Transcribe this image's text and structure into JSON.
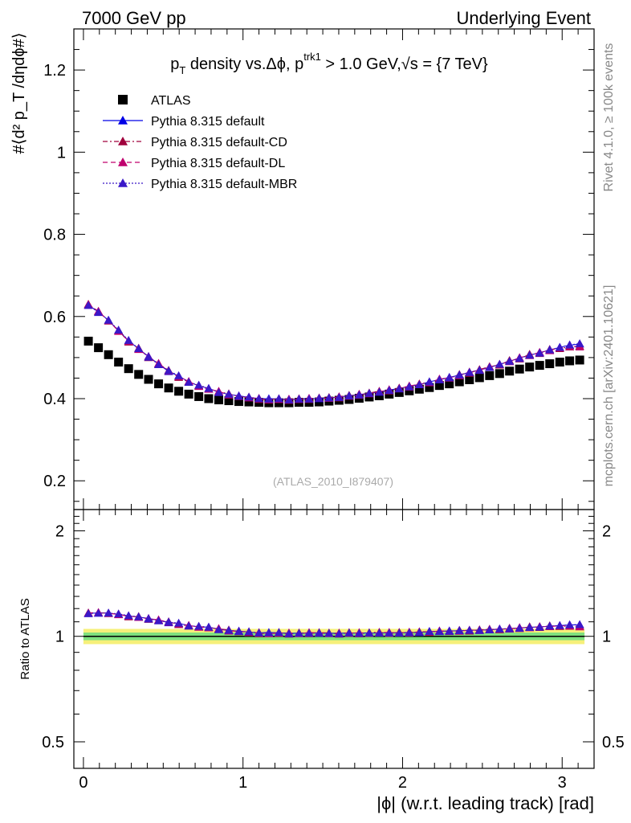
{
  "header": {
    "left_title": "7000 GeV pp",
    "right_title": "Underlying Event"
  },
  "side_text": {
    "rivet": "Rivet 4.1.0, ≥ 100k events",
    "mcplots": "mcplots.cern.ch [arXiv:2401.10621]"
  },
  "plot_title": {
    "p": "p",
    "t_sub": "T",
    "text1": " density vs.",
    "delta": "Δϕ, p",
    "trk_sup": "trk1",
    "text2": " > 1.0 GeV,",
    "sqrt_s": "√s",
    "text3": " = {7 TeV}"
  },
  "watermark": "(ATLAS_2010_I879407)",
  "y_label_main": "#⟨d² p_T /dηdϕ#⟩",
  "y_label_ratio": "Ratio to ATLAS",
  "x_label": "|ϕ| (w.r.t. leading track) [rad]",
  "legend": [
    {
      "label": "ATLAS",
      "color": "#000000",
      "marker": "square",
      "line": "none"
    },
    {
      "label": "Pythia 8.315 default",
      "color": "#0000e6",
      "marker": "triangle",
      "line": "solid"
    },
    {
      "label": "Pythia 8.315 default-CD",
      "color": "#a0003c",
      "marker": "triangle",
      "line": "dashdot"
    },
    {
      "label": "Pythia 8.315 default-DL",
      "color": "#c0006e",
      "marker": "triangle",
      "line": "dashed"
    },
    {
      "label": "Pythia 8.315 default-MBR",
      "color": "#3a18c8",
      "marker": "triangle",
      "line": "dotted"
    }
  ],
  "chart_data": [
    {
      "type": "scatter",
      "panel": "main",
      "xlim": [
        -0.06,
        3.2
      ],
      "ylim": [
        0.13,
        1.3
      ],
      "yticks": [
        0.2,
        0.4,
        0.6,
        0.8,
        1.0,
        1.2
      ],
      "ytick_labels": [
        "0.2",
        "0.4",
        "0.6",
        "0.8",
        "1",
        "1.2"
      ],
      "xticks": [
        0,
        1,
        2,
        3
      ],
      "xtick_labels": [
        "0",
        "1",
        "2",
        "3"
      ],
      "x": [
        0.031,
        0.094,
        0.157,
        0.22,
        0.283,
        0.346,
        0.408,
        0.471,
        0.534,
        0.597,
        0.66,
        0.723,
        0.785,
        0.848,
        0.911,
        0.974,
        1.037,
        1.1,
        1.162,
        1.225,
        1.288,
        1.351,
        1.414,
        1.477,
        1.539,
        1.602,
        1.665,
        1.728,
        1.791,
        1.854,
        1.916,
        1.979,
        2.042,
        2.105,
        2.168,
        2.231,
        2.293,
        2.356,
        2.419,
        2.482,
        2.545,
        2.608,
        2.67,
        2.733,
        2.796,
        2.859,
        2.922,
        2.985,
        3.047,
        3.11
      ],
      "series": [
        {
          "name": "ATLAS",
          "values": [
            0.54,
            0.524,
            0.507,
            0.489,
            0.473,
            0.459,
            0.447,
            0.436,
            0.426,
            0.418,
            0.411,
            0.405,
            0.4,
            0.397,
            0.395,
            0.393,
            0.392,
            0.391,
            0.39,
            0.39,
            0.39,
            0.391,
            0.391,
            0.392,
            0.394,
            0.396,
            0.398,
            0.401,
            0.404,
            0.407,
            0.411,
            0.415,
            0.419,
            0.423,
            0.427,
            0.432,
            0.436,
            0.441,
            0.446,
            0.451,
            0.456,
            0.461,
            0.467,
            0.472,
            0.477,
            0.481,
            0.485,
            0.489,
            0.492,
            0.494
          ]
        },
        {
          "name": "Pythia 8.315 default",
          "values": [
            0.628,
            0.611,
            0.591,
            0.565,
            0.541,
            0.521,
            0.503,
            0.484,
            0.466,
            0.455,
            0.441,
            0.431,
            0.425,
            0.416,
            0.41,
            0.407,
            0.403,
            0.4,
            0.4,
            0.399,
            0.398,
            0.399,
            0.4,
            0.4,
            0.402,
            0.404,
            0.407,
            0.41,
            0.413,
            0.416,
            0.421,
            0.425,
            0.43,
            0.434,
            0.441,
            0.446,
            0.452,
            0.457,
            0.464,
            0.47,
            0.476,
            0.483,
            0.491,
            0.499,
            0.506,
            0.512,
            0.518,
            0.525,
            0.53,
            0.533
          ]
        },
        {
          "name": "Pythia 8.315 default-CD",
          "values": [
            0.63,
            0.612,
            0.589,
            0.566,
            0.538,
            0.523,
            0.5,
            0.485,
            0.469,
            0.452,
            0.44,
            0.432,
            0.424,
            0.417,
            0.412,
            0.405,
            0.404,
            0.398,
            0.398,
            0.4,
            0.396,
            0.4,
            0.398,
            0.402,
            0.403,
            0.402,
            0.408,
            0.408,
            0.414,
            0.418,
            0.419,
            0.426,
            0.428,
            0.436,
            0.44,
            0.447,
            0.45,
            0.459,
            0.462,
            0.471,
            0.478,
            0.482,
            0.493,
            0.497,
            0.508,
            0.51,
            0.52,
            0.522,
            0.526,
            0.528
          ]
        },
        {
          "name": "Pythia 8.315 default-DL",
          "values": [
            0.629,
            0.613,
            0.59,
            0.564,
            0.54,
            0.52,
            0.502,
            0.486,
            0.467,
            0.454,
            0.442,
            0.43,
            0.423,
            0.418,
            0.409,
            0.406,
            0.402,
            0.401,
            0.397,
            0.398,
            0.399,
            0.398,
            0.401,
            0.401,
            0.401,
            0.405,
            0.406,
            0.411,
            0.412,
            0.417,
            0.422,
            0.424,
            0.431,
            0.435,
            0.439,
            0.448,
            0.451,
            0.456,
            0.465,
            0.469,
            0.477,
            0.484,
            0.49,
            0.5,
            0.505,
            0.513,
            0.517,
            0.524,
            0.527,
            0.526
          ]
        },
        {
          "name": "Pythia 8.315 default-MBR",
          "values": [
            0.627,
            0.61,
            0.591,
            0.567,
            0.542,
            0.522,
            0.501,
            0.483,
            0.468,
            0.456,
            0.44,
            0.433,
            0.425,
            0.415,
            0.411,
            0.406,
            0.404,
            0.4,
            0.399,
            0.4,
            0.397,
            0.399,
            0.399,
            0.401,
            0.402,
            0.403,
            0.407,
            0.409,
            0.413,
            0.416,
            0.42,
            0.424,
            0.429,
            0.434,
            0.441,
            0.446,
            0.451,
            0.458,
            0.464,
            0.469,
            0.476,
            0.484,
            0.491,
            0.498,
            0.506,
            0.511,
            0.519,
            0.525,
            0.531,
            0.534
          ]
        }
      ]
    },
    {
      "type": "scatter",
      "panel": "ratio",
      "ylabel": "Ratio to ATLAS",
      "xlim": [
        -0.06,
        3.2
      ],
      "ylim": [
        0.42,
        2.3
      ],
      "yticks": [
        0.5,
        1,
        2
      ],
      "ytick_labels": [
        "0.5",
        "1",
        "2"
      ],
      "xticks": [
        0,
        1,
        2,
        3
      ],
      "xtick_labels": [
        "0",
        "1",
        "2",
        "3"
      ],
      "band_inner": 0.025,
      "band_outer": 0.05,
      "band_inner_color": "#7ee07e",
      "band_outer_color": "#f6f07a",
      "reference": 1.0
    }
  ]
}
